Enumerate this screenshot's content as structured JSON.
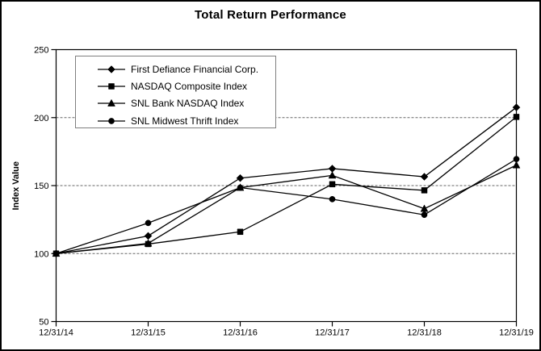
{
  "chart_data": {
    "type": "line",
    "title": "Total Return Performance",
    "xlabel": "",
    "ylabel": "Index Value",
    "categories": [
      "12/31/14",
      "12/31/15",
      "12/31/16",
      "12/31/17",
      "12/31/18",
      "12/31/19"
    ],
    "series": [
      {
        "name": "First Defiance Financial Corp.",
        "marker": "diamond",
        "values": [
          100,
          113,
          155.5,
          162.5,
          156.5,
          207.5
        ]
      },
      {
        "name": "NASDAQ Composite Index",
        "marker": "square",
        "values": [
          100,
          107,
          116,
          151,
          146.5,
          200.5
        ]
      },
      {
        "name": "SNL Bank NASDAQ Index",
        "marker": "triangle",
        "values": [
          100,
          107.5,
          148.5,
          157.5,
          133,
          165
        ]
      },
      {
        "name": "SNL Midwest Thrift Index",
        "marker": "circle",
        "values": [
          100,
          122.5,
          148.5,
          140,
          128.5,
          169.5
        ]
      }
    ],
    "ylim": [
      50,
      250
    ],
    "y_ticks": [
      50,
      100,
      150,
      200,
      250
    ],
    "grid_values": [
      100,
      150,
      200
    ],
    "grid_on": true,
    "legend_position": "top-left",
    "colors": {
      "series": "#000000",
      "grid": "#666666",
      "axis": "#000000",
      "legend_border": "#7f7f7f",
      "background": "#ffffff",
      "frame_border": "#000000"
    }
  }
}
